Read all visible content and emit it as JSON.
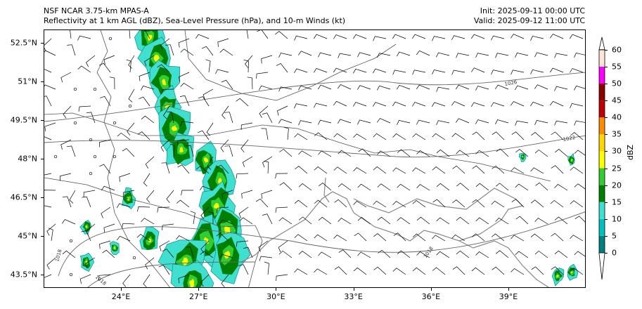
{
  "title_left": [
    "NSF NCAR 3.75-km MPAS-A",
    "Reflectivity at 1 km AGL (dBZ), Sea-Level Pressure (hPa), and 10-m Winds (kt)"
  ],
  "title_right": [
    "Init: 2025-09-11 00:00 UTC",
    "Valid: 2025-09-12 11:00 UTC"
  ],
  "x_ticks": [
    "24°E",
    "27°E",
    "30°E",
    "33°E",
    "36°E",
    "39°E"
  ],
  "y_ticks": [
    "52.5°N",
    "51°N",
    "49.5°N",
    "48°N",
    "46.5°N",
    "45°N",
    "43.5°N"
  ],
  "contour_labels": [
    "1026",
    "1022",
    "1018",
    "1018",
    "1018"
  ],
  "colorbar": {
    "label": "dBZ",
    "ticks": [
      "0",
      "5",
      "10",
      "15",
      "20",
      "25",
      "30",
      "35",
      "40",
      "45",
      "50",
      "55",
      "60"
    ],
    "colors": [
      "#008080",
      "#00c0c0",
      "#40e0d0",
      "#008000",
      "#32cd32",
      "#ffff00",
      "#ffd700",
      "#ff8c00",
      "#c00000",
      "#8b0000",
      "#ff00ff",
      "#ffe4d8"
    ]
  }
}
